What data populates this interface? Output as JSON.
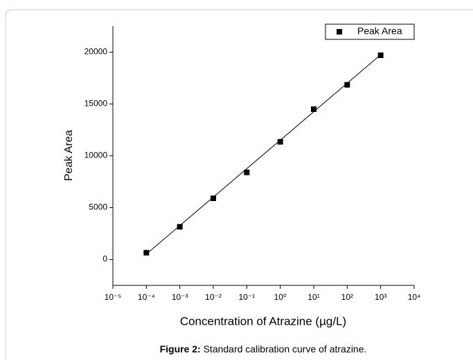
{
  "chart_data": {
    "type": "scatter",
    "x_label": "Concentration of Atrazine (µg/L)",
    "y_label": "Peak Area",
    "caption_label": "Figure 2:",
    "caption_text": "Standard calibration curve of atrazine.",
    "xscale": "log",
    "xlim": [
      1e-05,
      10000
    ],
    "xticks": [
      {
        "value": 1e-05,
        "label": "10⁻⁵"
      },
      {
        "value": 0.0001,
        "label": "10⁻⁴"
      },
      {
        "value": 0.001,
        "label": "10⁻³"
      },
      {
        "value": 0.01,
        "label": "10⁻²"
      },
      {
        "value": 0.1,
        "label": "10⁻¹"
      },
      {
        "value": 1,
        "label": "10⁰"
      },
      {
        "value": 10,
        "label": "10¹"
      },
      {
        "value": 100,
        "label": "10²"
      },
      {
        "value": 1000,
        "label": "10³"
      },
      {
        "value": 10000,
        "label": "10⁴"
      }
    ],
    "ylim": [
      -2500,
      22500
    ],
    "yticks": [
      0,
      5000,
      10000,
      15000,
      20000
    ],
    "legend": "top-right",
    "series": [
      {
        "name": "Peak Area",
        "color": "#000000",
        "x": [
          0.0001,
          0.001,
          0.01,
          0.1,
          1,
          10,
          100,
          1000
        ],
        "values": [
          650,
          3150,
          5900,
          8400,
          11350,
          14500,
          16850,
          19700
        ]
      }
    ],
    "fit": {
      "color": "#000000",
      "x": [
        0.0001,
        1000
      ],
      "values": [
        520,
        19750
      ]
    }
  }
}
